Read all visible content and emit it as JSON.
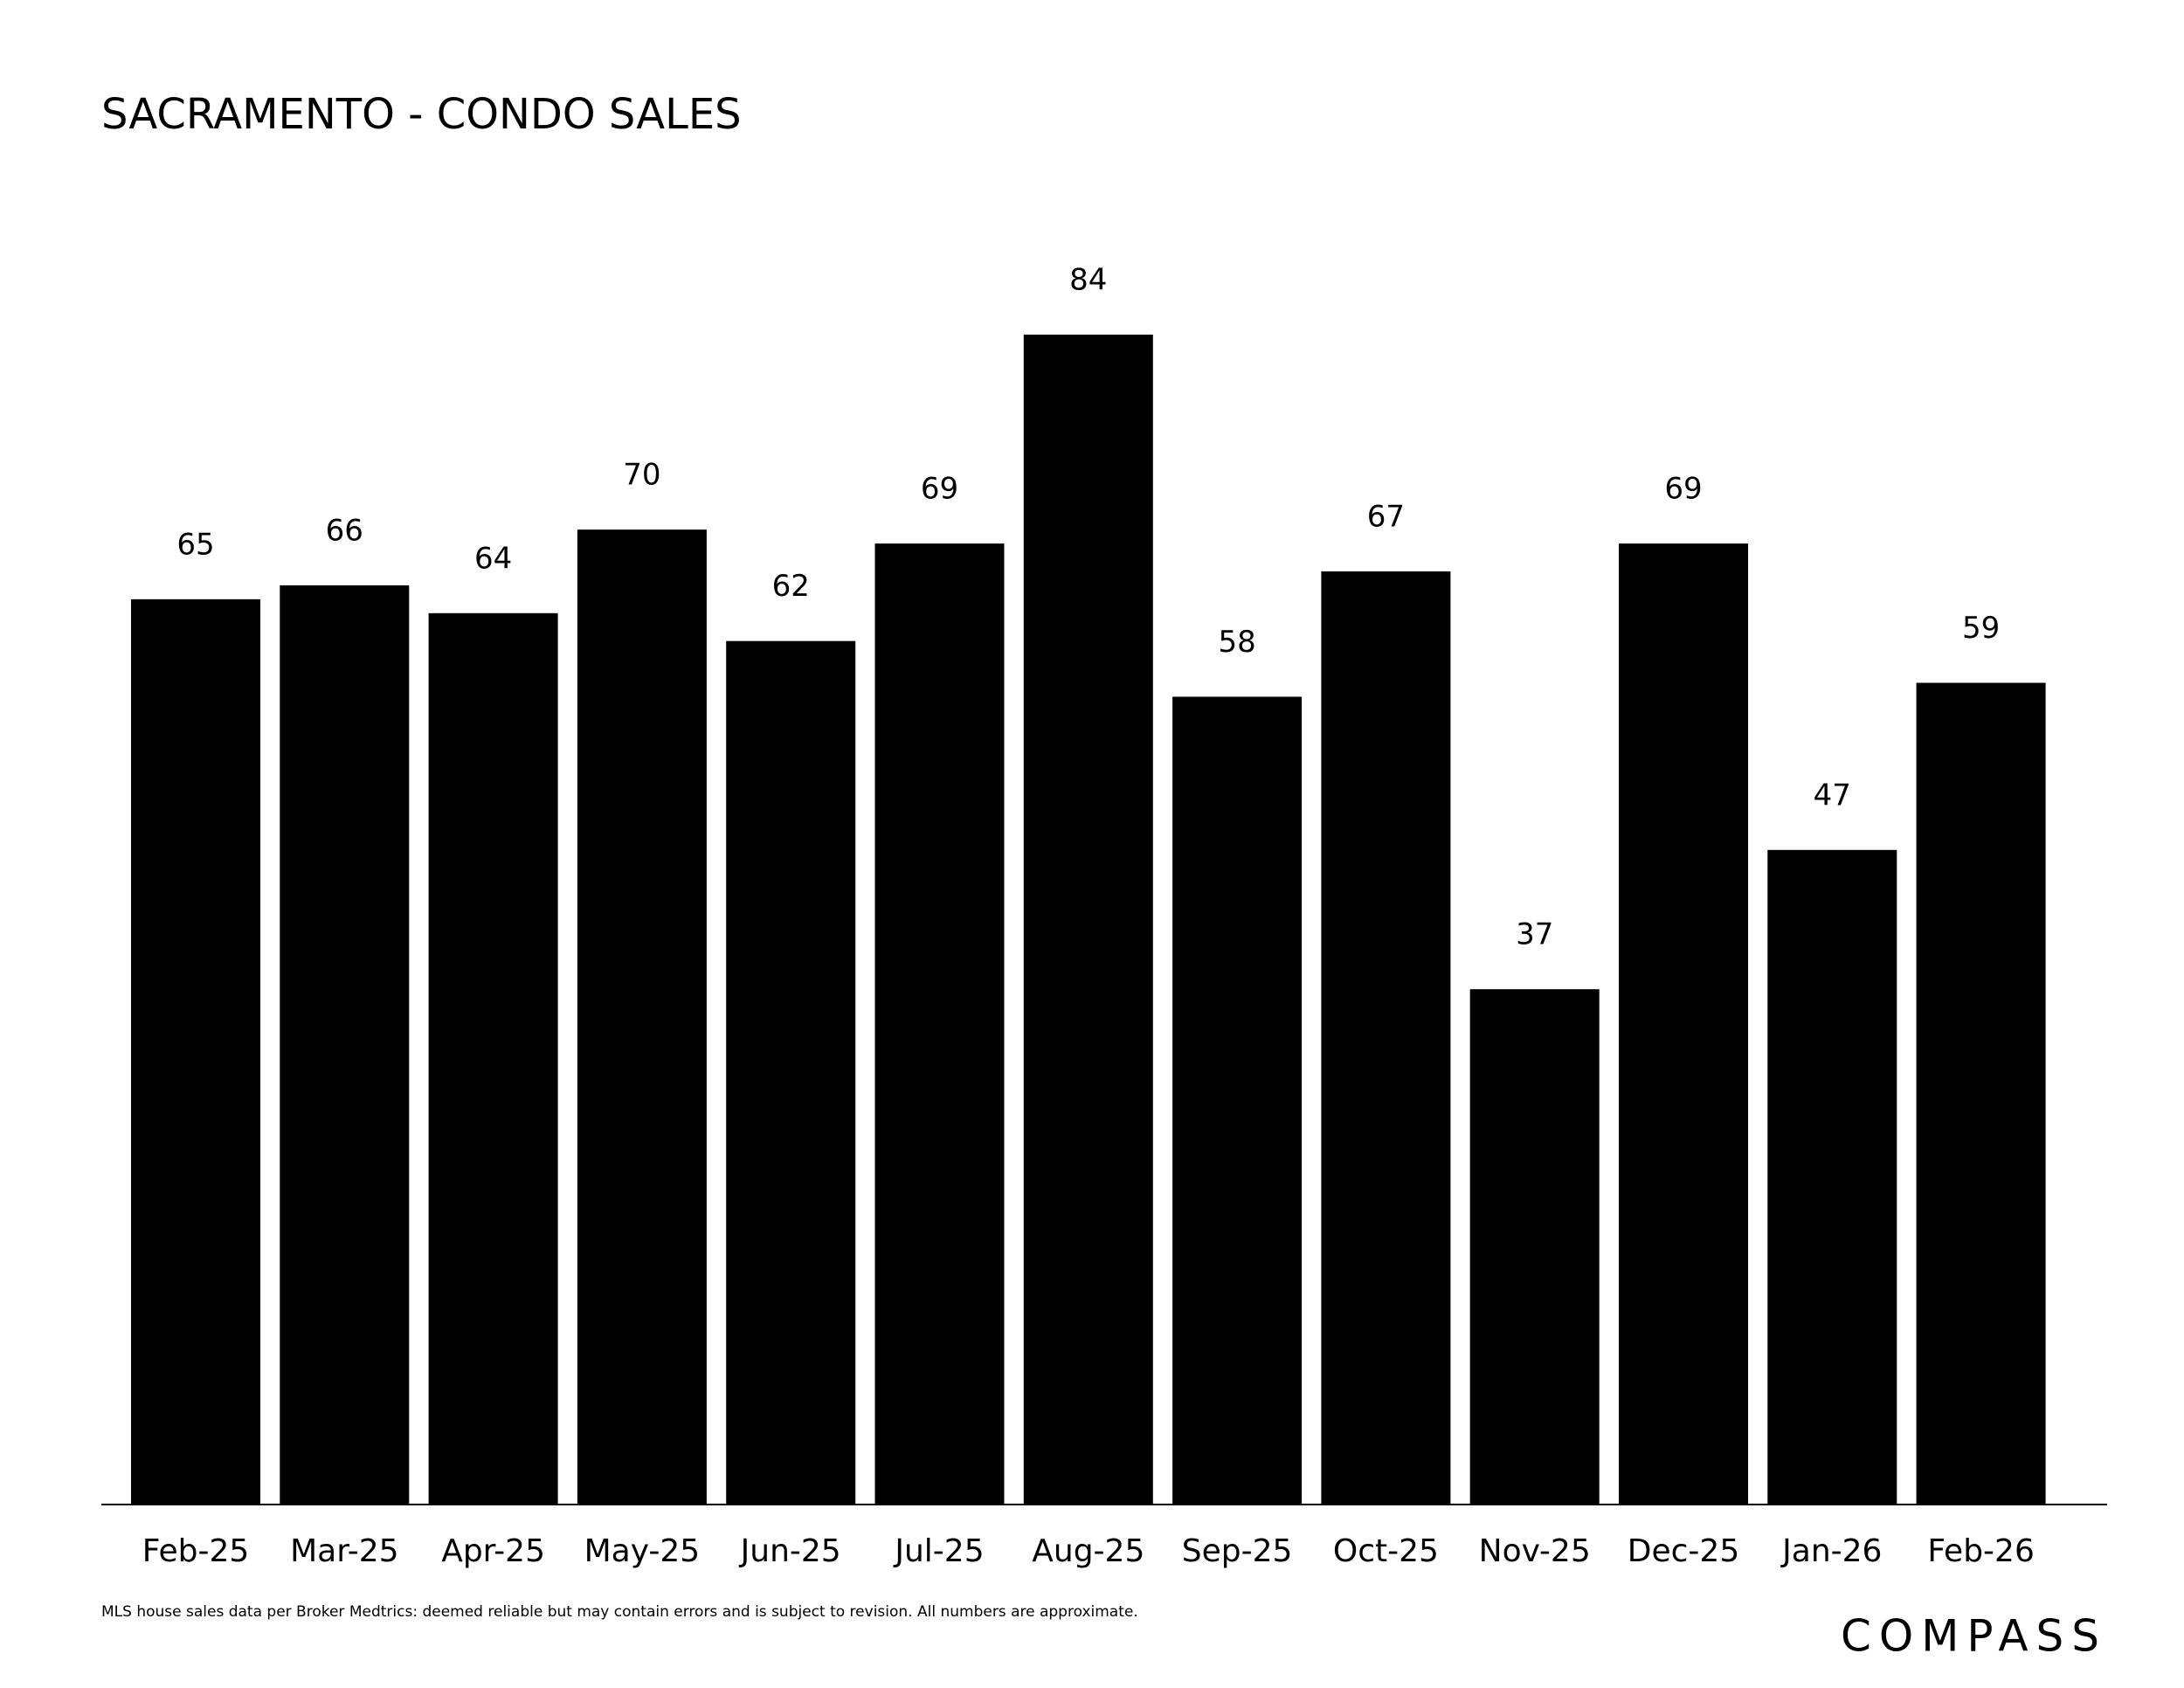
{
  "chart_data": {
    "type": "bar",
    "title": "SACRAMENTO - CONDO SALES",
    "categories": [
      "Feb-25",
      "Mar-25",
      "Apr-25",
      "May-25",
      "Jun-25",
      "Jul-25",
      "Aug-25",
      "Sep-25",
      "Oct-25",
      "Nov-25",
      "Dec-25",
      "Jan-26",
      "Feb-26"
    ],
    "values": [
      65,
      66,
      64,
      70,
      62,
      69,
      84,
      58,
      67,
      37,
      69,
      47,
      59
    ],
    "color": "#000000",
    "footnote": "MLS house sales data per Broker Medtrics: deemed reliable but may contain errors and is subject to revision. All numbers are approximate.",
    "logo": "COMPASS"
  }
}
